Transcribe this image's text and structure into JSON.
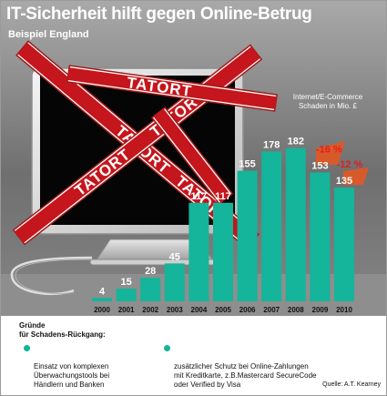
{
  "header": {
    "title": "IT-Sicherheit hilft gegen Online-Betrug",
    "subtitle": "Beispiel England"
  },
  "chart_data": {
    "type": "bar",
    "title": "IT-Sicherheit hilft gegen Online-Betrug",
    "subtitle": "Beispiel England",
    "ylabel": "Internet/E-Commerce Schaden in Mio. £",
    "xlabel": "",
    "categories": [
      "2000",
      "2001",
      "2002",
      "2003",
      "2004",
      "2005",
      "2006",
      "2007",
      "2008",
      "2009",
      "2010"
    ],
    "values": [
      4,
      15,
      28,
      45,
      117,
      117,
      155,
      178,
      182,
      153,
      135
    ],
    "ylim": [
      0,
      200
    ],
    "annotations": [
      {
        "category": "2009",
        "text": "-16 %"
      },
      {
        "category": "2010",
        "text": "-12 %"
      }
    ],
    "colors": {
      "bar": "#14b59a",
      "highlight": "#d85a2a",
      "annotation": "#e0201c"
    },
    "grid": false,
    "legend": "none"
  },
  "illustration": {
    "tape_text": "TATORT"
  },
  "footer": {
    "heading": "Gründe\nfür Schadens-Rückgang:",
    "reasons": [
      "Einsatz von komplexen\nÜberwachungstools bei\nHändlern und Banken",
      "zusätzlicher Schutz bei Online-Zahlungen\nmit Kreditkarte, z.B.Mastercard SecureCode\noder Verified by Visa"
    ],
    "source": "Quelle: A.T. Kearney"
  }
}
